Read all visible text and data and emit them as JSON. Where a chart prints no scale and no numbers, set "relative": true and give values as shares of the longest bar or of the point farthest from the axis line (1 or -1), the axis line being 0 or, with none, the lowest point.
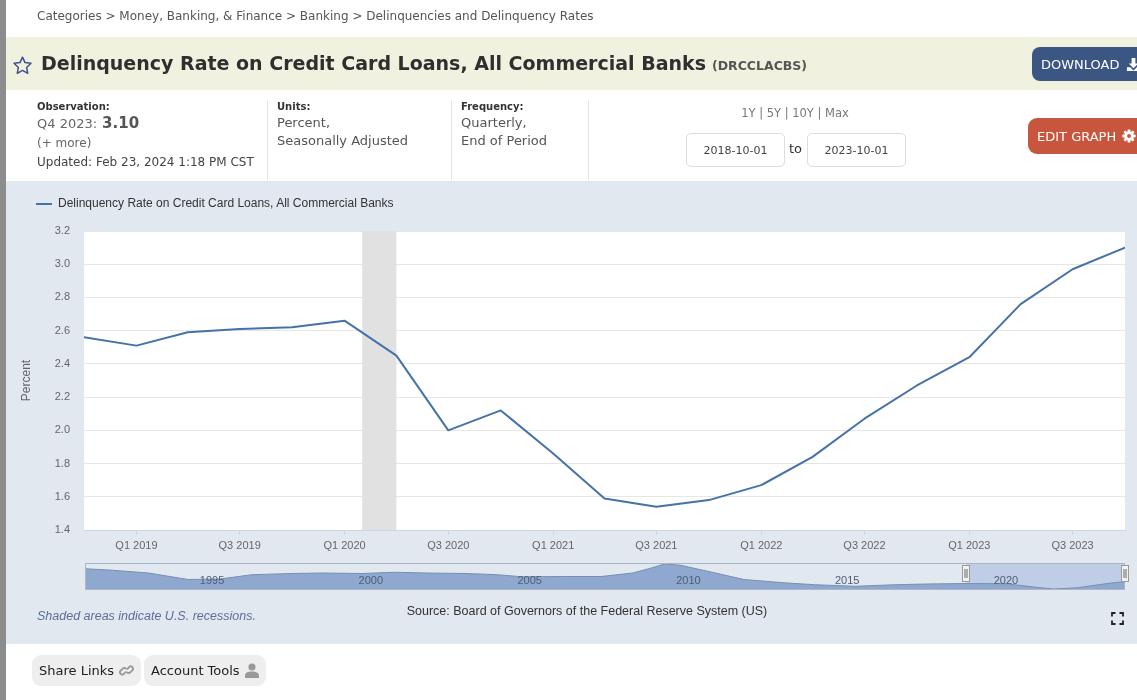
{
  "chart_data": [
    {
      "type": "line",
      "title": "Delinquency Rate on Credit Card Loans, All Commercial Banks",
      "subtitle": "(DRCCLACBS)",
      "ylabel": "Percent",
      "x": [
        "2018-10-01",
        "2019-01-01",
        "2019-04-01",
        "2019-07-01",
        "2019-10-01",
        "2020-01-01",
        "2020-04-01",
        "2020-07-01",
        "2020-10-01",
        "2021-01-01",
        "2021-04-01",
        "2021-07-01",
        "2021-10-01",
        "2022-01-01",
        "2022-04-01",
        "2022-07-01",
        "2022-10-01",
        "2023-01-01",
        "2023-04-01",
        "2023-07-01",
        "2023-10-01"
      ],
      "series": [
        {
          "name": "Delinquency Rate on Credit Card Loans, All Commercial Banks",
          "color": "#4572a7",
          "values": [
            2.56,
            2.51,
            2.59,
            2.61,
            2.62,
            2.66,
            2.45,
            2.0,
            2.12,
            1.86,
            1.59,
            1.54,
            1.58,
            1.67,
            1.84,
            2.07,
            2.27,
            2.44,
            2.76,
            2.97,
            3.1
          ]
        }
      ],
      "xlim": [
        "2018-10-01",
        "2023-10-01"
      ],
      "xticks": [
        {
          "value": "2019-01-01",
          "label": "Q1 2019"
        },
        {
          "value": "2019-07-01",
          "label": "Q3 2019"
        },
        {
          "value": "2020-01-01",
          "label": "Q1 2020"
        },
        {
          "value": "2020-07-01",
          "label": "Q3 2020"
        },
        {
          "value": "2021-01-01",
          "label": "Q1 2021"
        },
        {
          "value": "2021-07-01",
          "label": "Q3 2021"
        },
        {
          "value": "2022-01-01",
          "label": "Q1 2022"
        },
        {
          "value": "2022-07-01",
          "label": "Q3 2022"
        },
        {
          "value": "2023-01-01",
          "label": "Q1 2023"
        },
        {
          "value": "2023-07-01",
          "label": "Q3 2023"
        }
      ],
      "ylim": [
        1.4,
        3.2
      ],
      "yticks": [
        1.4,
        1.6,
        1.8,
        {
          "value": 2,
          "label": "2.0"
        },
        2.2,
        2.4,
        2.6,
        2.8,
        {
          "value": 3,
          "label": "3.0"
        },
        3.2
      ],
      "bands": [
        {
          "axis": "x",
          "from": "2020-02-01",
          "to": "2020-04-01",
          "color": "#e1e1e1"
        }
      ],
      "grid": "y",
      "legend": "top left",
      "annotations": [
        "Categories > Money, Banking, & Finance > Banking > Delinquencies and Delinquency Rates",
        "DOWNLOAD",
        "Observation:",
        "Q4 2023:",
        "3.10",
        "(+ more)",
        "Updated: Feb 23, 2024 1:18 PM CST",
        "Units:",
        "Percent,",
        "Seasonally Adjusted",
        "Frequency:",
        "Quarterly,",
        "End of Period",
        "1Y | 5Y | 10Y | Max",
        "2018-10-01",
        "to",
        "2023-10-01",
        "EDIT GRAPH",
        "Shaded areas indicate U.S. recessions.",
        "Source: Board of Governors of the Federal Reserve System (US)",
        "Share Links",
        "Account Tools"
      ]
    },
    {
      "type": "area",
      "relative": true,
      "x": [
        "1991-01",
        "1991-10",
        "1993-01",
        "1994-04",
        "1995-04",
        "1996-04",
        "1997-07",
        "1998-07",
        "1999-10",
        "2000-10",
        "2001-10",
        "2003-01",
        "2004-01",
        "2004-10",
        "2006-01",
        "2007-04",
        "2008-04",
        "2008-10",
        "2009-04",
        "2009-10",
        "2010-10",
        "2011-10",
        "2013-01",
        "2014-01",
        "2015-04",
        "2016-07",
        "2017-07",
        "2018-10",
        "2020-01",
        "2021-01",
        "2021-07",
        "2022-04",
        "2023-04",
        "2023-10"
      ],
      "values": [
        0.81,
        0.76,
        0.64,
        0.38,
        0.4,
        0.57,
        0.62,
        0.64,
        0.62,
        0.67,
        0.64,
        0.62,
        0.57,
        0.49,
        0.5,
        0.5,
        0.64,
        0.81,
        1,
        0.95,
        0.67,
        0.38,
        0.25,
        0.17,
        0.11,
        0.17,
        0.2,
        0.22,
        0.21,
        0.06,
        0,
        0.05,
        0.23,
        0.3
      ],
      "color": "#8ea8cf",
      "xlim": [
        "1991-01",
        "2023-10"
      ],
      "xticks": [
        {
          "value": "1995-01-01",
          "label": "1995"
        },
        {
          "value": "2000-01-01",
          "label": "2000"
        },
        {
          "value": "2005-01-01",
          "label": "2005"
        },
        {
          "value": "2010-01-01",
          "label": "2010"
        },
        {
          "value": "2015-01-01",
          "label": "2015"
        },
        {
          "value": "2020-01-01",
          "label": "2020"
        }
      ],
      "bands": [
        {
          "axis": "x",
          "from": "2018-10-01",
          "to": "2023-10-01",
          "color": "#bfcde6"
        }
      ]
    }
  ]
}
